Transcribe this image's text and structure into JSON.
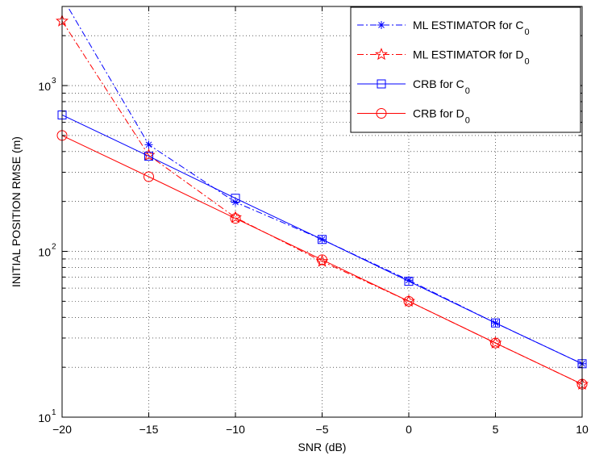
{
  "chart_data": {
    "type": "line",
    "title": "",
    "xlabel": "SNR (dB)",
    "ylabel": "INITIAL POSITION RMSE (m)",
    "xlim": [
      -20,
      10
    ],
    "ylim": [
      10,
      3000
    ],
    "yscale": "log",
    "grid": true,
    "legend_position": "top-right",
    "x_ticks": [
      -20,
      -15,
      -10,
      -5,
      0,
      5,
      10
    ],
    "x_tick_labels": [
      "−20",
      "−15",
      "−10",
      "−5",
      "0",
      "5",
      "10"
    ],
    "y_ticks": [
      {
        "value": 10,
        "base": "10",
        "exp": "1"
      },
      {
        "value": 100,
        "base": "10",
        "exp": "2"
      },
      {
        "value": 1000,
        "base": "10",
        "exp": "3"
      }
    ],
    "series": [
      {
        "name": "ML ESTIMATOR for C",
        "name_sub": "0",
        "color": "#0000ff",
        "dash": "8,3,2,3",
        "marker": "asterisk",
        "x": [
          -19.6,
          -15,
          -10,
          -5,
          0,
          5,
          10
        ],
        "y": [
          2900,
          440,
          198,
          118,
          67,
          37,
          21
        ],
        "marker_x": [
          -15,
          -10,
          -5,
          0,
          5,
          10
        ],
        "marker_y": [
          440,
          198,
          118,
          67,
          37,
          21
        ]
      },
      {
        "name": "ML ESTIMATOR for D",
        "name_sub": "0",
        "color": "#ff0000",
        "dash": "8,3,2,3",
        "marker": "star",
        "x": [
          -20,
          -15,
          -10,
          -5,
          0,
          5,
          10
        ],
        "y": [
          2450,
          380,
          160,
          87,
          50,
          28,
          15.8
        ],
        "marker_x": [
          -20,
          -15,
          -10,
          -5,
          0,
          5,
          10
        ],
        "marker_y": [
          2450,
          380,
          160,
          87,
          50,
          28,
          15.8
        ]
      },
      {
        "name": "CRB for C",
        "name_sub": "0",
        "color": "#0000ff",
        "dash": "",
        "marker": "square",
        "x": [
          -20,
          -15,
          -10,
          -5,
          0,
          5,
          10
        ],
        "y": [
          665,
          375,
          209,
          118,
          66,
          37,
          21
        ],
        "marker_x": [
          -20,
          -15,
          -10,
          -5,
          0,
          5,
          10
        ],
        "marker_y": [
          665,
          375,
          209,
          118,
          66,
          37,
          21
        ]
      },
      {
        "name": "CRB for D",
        "name_sub": "0",
        "color": "#ff0000",
        "dash": "",
        "marker": "circle",
        "x": [
          -20,
          -15,
          -10,
          -5,
          0,
          5,
          10
        ],
        "y": [
          500,
          282,
          158,
          89,
          50,
          28,
          15.8
        ],
        "marker_x": [
          -20,
          -15,
          -10,
          -5,
          0,
          5,
          10
        ],
        "marker_y": [
          500,
          282,
          158,
          89,
          50,
          28,
          15.8
        ]
      }
    ]
  }
}
